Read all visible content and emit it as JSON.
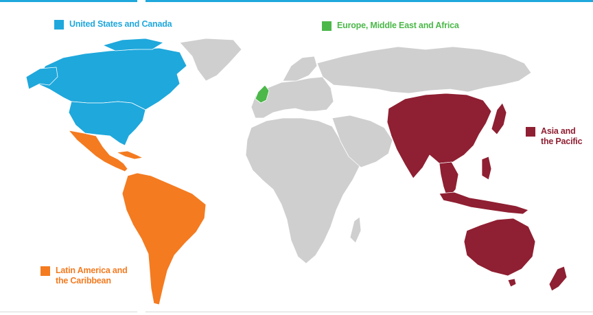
{
  "map": {
    "colors": {
      "background": "#ffffff",
      "land_other": "#cfcfcf",
      "border": "#ffffff",
      "accent_bar": "#1fa8dc"
    },
    "regions": [
      {
        "id": "us-canada",
        "label": "United States and Canada",
        "color": "#1fa8dc"
      },
      {
        "id": "emea",
        "label": "Europe, Middle East and Africa",
        "color": "#4cb84a"
      },
      {
        "id": "apac",
        "label": "Asia and the Pacific",
        "label_lines": [
          "Asia and",
          "the Pacific"
        ],
        "color": "#8f1f32"
      },
      {
        "id": "latam",
        "label": "Latin America and the Caribbean",
        "label_lines": [
          "Latin America and",
          "the Caribbean"
        ],
        "color": "#f47b20"
      }
    ]
  }
}
